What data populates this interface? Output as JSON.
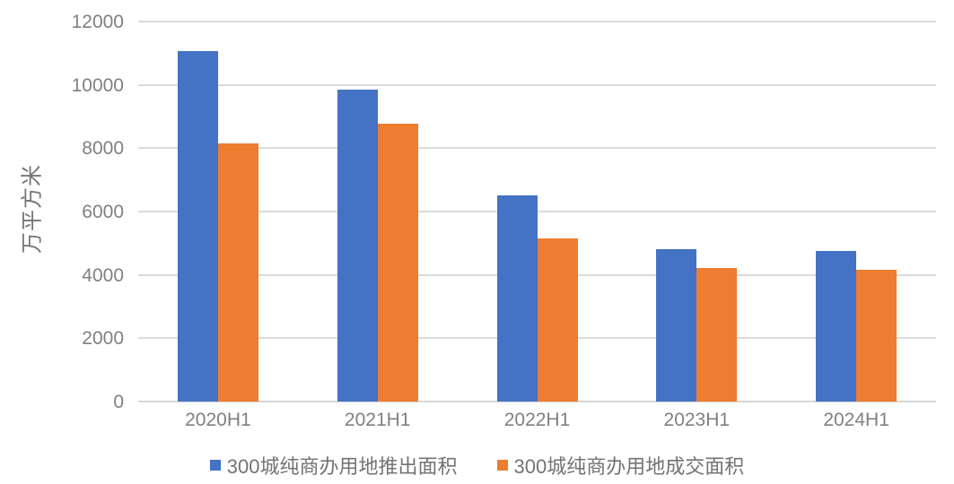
{
  "chart_data": {
    "type": "bar",
    "ylabel": "万平方米",
    "categories": [
      "2020H1",
      "2021H1",
      "2022H1",
      "2023H1",
      "2024H1"
    ],
    "series": [
      {
        "name": "300城纯商办用地推出面积",
        "color": "#4472C4",
        "values": [
          11070,
          9850,
          6500,
          4800,
          4750
        ]
      },
      {
        "name": "300城纯商办用地成交面积",
        "color": "#ED7D31",
        "values": [
          8150,
          8780,
          5160,
          4230,
          4160
        ]
      }
    ],
    "ylim": [
      0,
      12000
    ],
    "yticks": [
      0,
      2000,
      4000,
      6000,
      8000,
      10000,
      12000
    ],
    "grid": true,
    "legend_position": "bottom",
    "colors": {
      "gridline": "#DBDBDB",
      "axis_line": "#D6D6D6",
      "axis_text": "#808080",
      "legend_text": "#737373",
      "background": "#FFFFFF"
    }
  }
}
